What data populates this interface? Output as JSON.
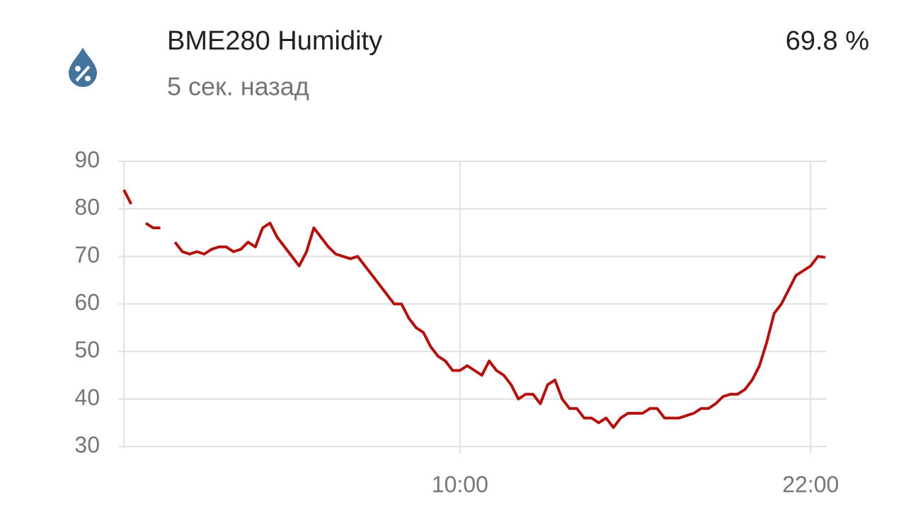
{
  "header": {
    "name": "BME280 Humidity",
    "state": "69.8 %",
    "last_changed": "5 сек. назад"
  },
  "chart_data": {
    "type": "line",
    "x": [
      -1.5,
      -1.25,
      -1,
      -0.75,
      -0.5,
      -0.25,
      0,
      0.25,
      0.5,
      0.75,
      1,
      1.25,
      1.5,
      1.75,
      2,
      2.25,
      2.5,
      2.75,
      3,
      3.25,
      3.5,
      3.75,
      4,
      4.25,
      4.5,
      4.75,
      5,
      5.25,
      5.5,
      5.75,
      6,
      6.25,
      6.5,
      6.75,
      7,
      7.25,
      7.5,
      7.75,
      8,
      8.25,
      8.5,
      8.75,
      9,
      9.25,
      9.5,
      9.75,
      10,
      10.25,
      10.5,
      10.75,
      11,
      11.25,
      11.5,
      11.75,
      12,
      12.25,
      12.5,
      12.75,
      13,
      13.25,
      13.5,
      13.75,
      14,
      14.25,
      14.5,
      14.75,
      15,
      15.25,
      15.5,
      15.75,
      16,
      16.25,
      16.5,
      16.75,
      17,
      17.25,
      17.5,
      17.75,
      18,
      18.25,
      18.5,
      18.75,
      19,
      19.25,
      19.5,
      19.75,
      20,
      20.25,
      20.5,
      20.75,
      21,
      21.25,
      21.5,
      21.75,
      22,
      22.25,
      22.5
    ],
    "series": [
      {
        "name": "BME280 Humidity",
        "color": "#b3130f",
        "values": [
          84,
          81,
          null,
          77,
          76,
          76,
          null,
          73,
          71,
          70.5,
          71,
          70.5,
          71.5,
          72,
          72,
          71,
          71.5,
          73,
          72,
          76,
          77,
          74,
          72,
          70,
          68,
          71,
          76,
          74,
          72,
          70.5,
          70,
          69.5,
          70,
          68,
          66,
          64,
          62,
          60,
          60,
          57,
          55,
          54,
          51,
          49,
          48,
          46,
          46,
          47,
          46,
          45,
          48,
          46,
          45,
          43,
          40,
          41,
          41,
          39,
          43,
          44,
          40,
          38,
          38,
          36,
          36,
          35,
          36,
          34,
          36,
          37,
          37,
          37,
          38,
          38,
          36,
          36,
          36,
          36.5,
          37,
          38,
          38,
          39,
          40.5,
          41,
          41,
          42,
          44,
          47,
          52,
          58,
          60,
          63,
          66,
          67,
          68,
          70,
          69.8
        ]
      }
    ],
    "xlim": [
      -1.5,
      22.55
    ],
    "xticks": [
      {
        "value": 10,
        "label": "10:00"
      },
      {
        "value": 22,
        "label": "22:00"
      }
    ],
    "ylim": [
      30,
      90
    ],
    "yticks": [
      30,
      40,
      50,
      60,
      70,
      80,
      90
    ],
    "grid": true
  }
}
